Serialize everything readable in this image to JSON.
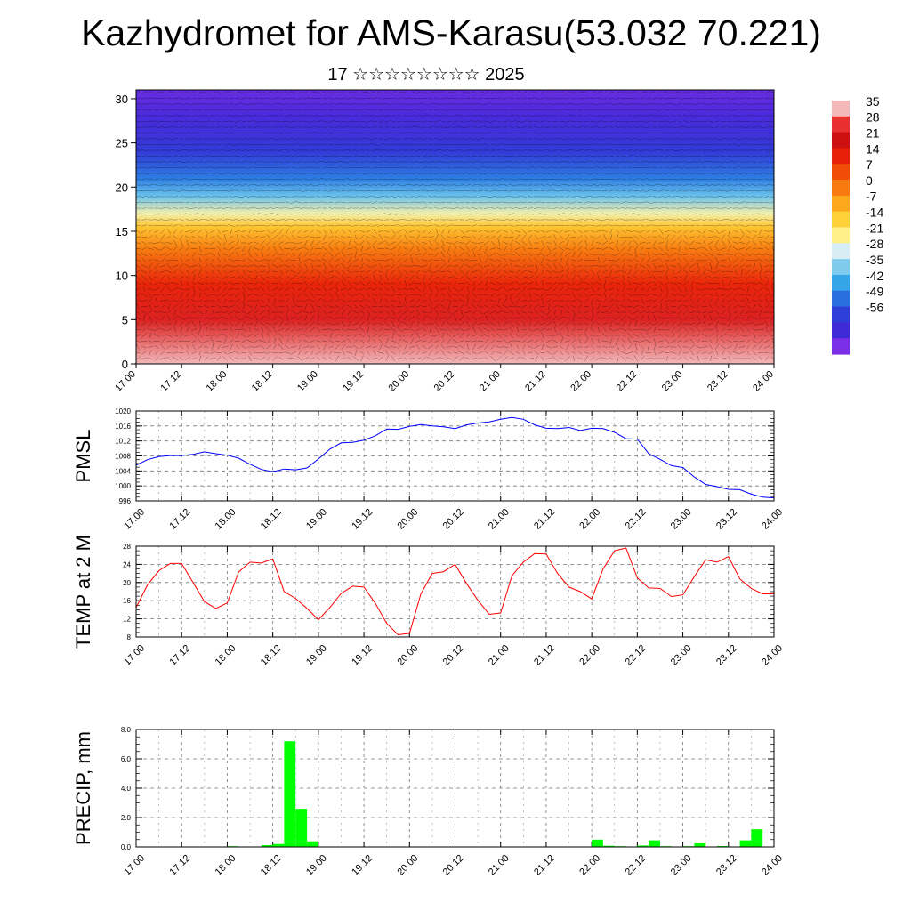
{
  "header": {
    "title": "Kazhydromet for AMS-Karasu(53.032 70.221)",
    "subtitle": "17 ☆☆☆☆☆☆☆☆ 2025"
  },
  "chart_data": [
    {
      "type": "heatmap",
      "name": "Temperature and wind cross-section",
      "x_tick_labels": [
        "17.00",
        "17.12",
        "18.00",
        "18.12",
        "19.00",
        "19.12",
        "20.00",
        "20.12",
        "21.00",
        "21.12",
        "22.00",
        "22.12",
        "23.00",
        "23.12",
        "24.00"
      ],
      "y_tick_labels": [
        "0",
        "5",
        "10",
        "15",
        "20",
        "25",
        "30"
      ],
      "ylim": [
        0,
        31
      ],
      "colorbar_labels": [
        "35",
        "28",
        "21",
        "14",
        "7",
        "0",
        "-7",
        "-14",
        "-21",
        "-28",
        "-35",
        "-42",
        "-49",
        "-56"
      ],
      "colorbar_colors": [
        "#f3b8b8",
        "#e83030",
        "#cf1010",
        "#e8200a",
        "#f04d08",
        "#f77a10",
        "#fca81c",
        "#ffd23a",
        "#fff08c",
        "#d8eef5",
        "#7ecbee",
        "#35a5e8",
        "#2a6fe0",
        "#2e3fd8",
        "#3f2ad8",
        "#7a2ee6"
      ],
      "temperature_profile": {
        "heights": [
          0,
          5,
          9,
          13,
          15.5,
          17,
          19,
          21,
          24,
          28,
          31
        ],
        "values": [
          35,
          26,
          16,
          4,
          -6,
          -16,
          -28,
          -37,
          -46,
          -52,
          -55
        ]
      },
      "grid": false
    },
    {
      "type": "line",
      "ylabel": "PMSL",
      "x_tick_labels": [
        "17.00",
        "17.12",
        "18.00",
        "18.12",
        "19.00",
        "19.12",
        "20.00",
        "20.12",
        "21.00",
        "21.12",
        "22.00",
        "22.12",
        "23.00",
        "23.12",
        "24.00"
      ],
      "y_tick_labels": [
        "996",
        "1000",
        "1004",
        "1008",
        "1012",
        "1016",
        "1020"
      ],
      "ylim": [
        996,
        1020
      ],
      "color": "#0000ff",
      "grid": true,
      "x": [
        0,
        3,
        6,
        9,
        12,
        15,
        18,
        21,
        24,
        27,
        30,
        33,
        36,
        39,
        42,
        45,
        48,
        51,
        54,
        57,
        60,
        63,
        66,
        69,
        72,
        75,
        78,
        81,
        84,
        87,
        90,
        93,
        96,
        99,
        102,
        105,
        108,
        111,
        114,
        117,
        120,
        123,
        126,
        129,
        132,
        135,
        138,
        141,
        144,
        147,
        150,
        153,
        156,
        159,
        162,
        165,
        168
      ],
      "values": [
        1005.5,
        1007,
        1007.8,
        1008.1,
        1008.1,
        1008.4,
        1009.1,
        1008.6,
        1008.2,
        1007.4,
        1005.8,
        1004.4,
        1003.8,
        1004.5,
        1004.3,
        1004.8,
        1007.2,
        1009.8,
        1011.5,
        1011.6,
        1012.2,
        1013.4,
        1015.2,
        1015.1,
        1015.9,
        1016.4,
        1016,
        1015.8,
        1015.3,
        1016.3,
        1016.8,
        1017.1,
        1017.8,
        1018.3,
        1017.8,
        1016.3,
        1015.4,
        1015.3,
        1015.6,
        1014.8,
        1015.4,
        1015.3,
        1014.3,
        1012.6,
        1012.5,
        1008.6,
        1007.1,
        1005.4,
        1004.9,
        1002.4,
        1000.4,
        999.8,
        999.1,
        999,
        997.8,
        997,
        996.8
      ]
    },
    {
      "type": "line",
      "ylabel": "TEMP at 2 M",
      "x_tick_labels": [
        "17.00",
        "17.12",
        "18.00",
        "18.12",
        "19.00",
        "19.12",
        "20.00",
        "20.12",
        "21.00",
        "21.12",
        "22.00",
        "22.12",
        "23.00",
        "23.12",
        "24.00"
      ],
      "y_tick_labels": [
        "8",
        "12",
        "16",
        "20",
        "24",
        "28"
      ],
      "ylim": [
        8,
        28
      ],
      "color": "#ff0000",
      "grid": true,
      "x": [
        0,
        3,
        6,
        9,
        12,
        15,
        18,
        21,
        24,
        27,
        30,
        33,
        36,
        39,
        42,
        45,
        48,
        51,
        54,
        57,
        60,
        63,
        66,
        69,
        72,
        75,
        78,
        81,
        84,
        87,
        90,
        93,
        96,
        99,
        102,
        105,
        108,
        111,
        114,
        117,
        120,
        123,
        126,
        129,
        132,
        135,
        138,
        141,
        144,
        147,
        150,
        153,
        156,
        159,
        162,
        165,
        168
      ],
      "values": [
        14.5,
        19.5,
        22.6,
        24.2,
        24.2,
        20,
        15.8,
        14.3,
        15.5,
        22.3,
        24.5,
        24.3,
        25.2,
        18,
        16.5,
        14.3,
        11.8,
        14.5,
        17.6,
        19.2,
        19,
        15.4,
        11,
        8.5,
        8.8,
        17.5,
        22,
        22.4,
        24,
        19.8,
        16.1,
        13,
        13.3,
        21.5,
        24.5,
        26.4,
        26.3,
        22,
        19,
        18,
        16.4,
        23,
        27,
        27.6,
        21,
        18.8,
        18.7,
        16.9,
        17.3,
        21.3,
        25,
        24.5,
        25.7,
        20.8,
        18.7,
        17.5,
        17.5
      ]
    },
    {
      "type": "bar",
      "ylabel": "PRECIP, mm",
      "x_tick_labels": [
        "17.00",
        "17.12",
        "18.00",
        "18.12",
        "19.00",
        "19.12",
        "20.00",
        "20.12",
        "21.00",
        "21.12",
        "22.00",
        "22.12",
        "23.00",
        "23.12",
        "24.00"
      ],
      "y_tick_labels": [
        "0.0",
        "2.0",
        "4.0",
        "6.0",
        "8.0"
      ],
      "ylim": [
        0,
        8
      ],
      "color": "#00ff00",
      "grid": true,
      "bar_hours": [
        24,
        30,
        33,
        36,
        39,
        42,
        45,
        48,
        117,
        120,
        123,
        126,
        132,
        135,
        138,
        144,
        147,
        153,
        159,
        162
      ],
      "values": [
        0.05,
        0.02,
        0.12,
        0.2,
        7.2,
        2.6,
        0.38,
        0.03,
        0.02,
        0.5,
        0.08,
        0.05,
        0.1,
        0.45,
        0.05,
        0.05,
        0.25,
        0.06,
        0.45,
        1.2
      ]
    }
  ]
}
